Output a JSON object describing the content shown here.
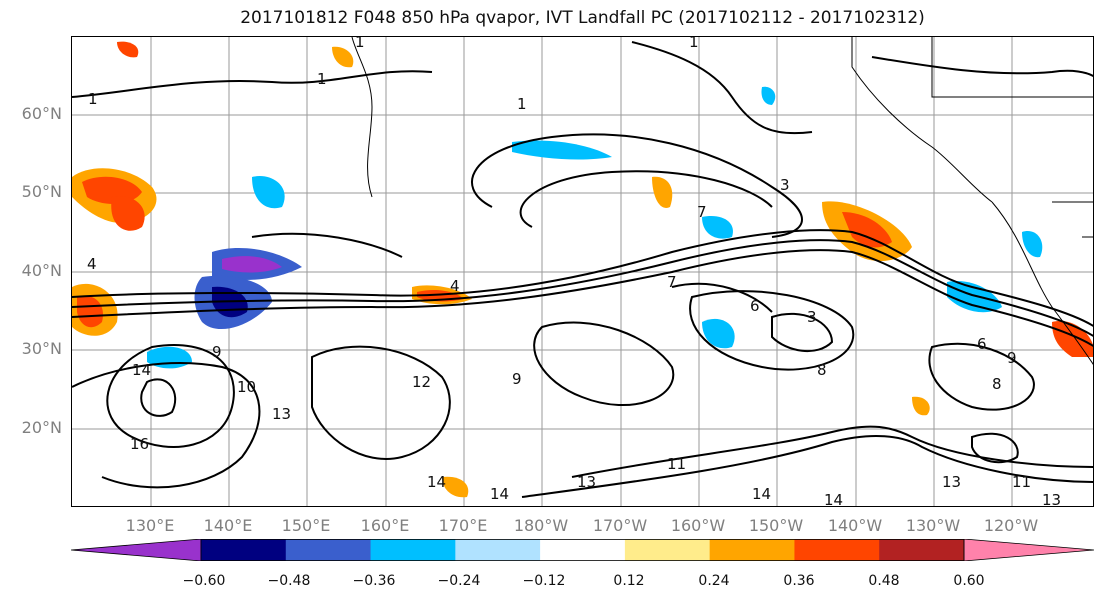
{
  "title": "2017101812 F048 850 hPa qvapor, IVT Landfall PC (2017102112 - 2017102312)",
  "map": {
    "lat_labels": [
      "60°N",
      "50°N",
      "40°N",
      "30°N",
      "20°N"
    ],
    "lon_labels": [
      "130°E",
      "140°E",
      "150°E",
      "160°E",
      "170°E",
      "180°W",
      "170°W",
      "160°W",
      "150°W",
      "140°W",
      "130°W",
      "120°W"
    ],
    "contour_labels": [
      "1",
      "1",
      "1",
      "1",
      "1",
      "3",
      "3",
      "4",
      "4",
      "6",
      "6",
      "7",
      "7",
      "8",
      "8",
      "9",
      "9",
      "9",
      "10",
      "11",
      "12",
      "13",
      "13",
      "13",
      "13",
      "14",
      "14",
      "14",
      "14",
      "14",
      "16",
      "11"
    ]
  },
  "colorbar": {
    "tick_labels": [
      "−0.60",
      "−0.48",
      "−0.36",
      "−0.24",
      "−0.12",
      "0.12",
      "0.24",
      "0.36",
      "0.48",
      "0.60"
    ],
    "colors": [
      "#9932CC",
      "#000080",
      "#3A5FCD",
      "#00BFFF",
      "#B0E2FF",
      "#FFFFFF",
      "#FFEC8B",
      "#FFA500",
      "#FF4500",
      "#B22222",
      "#FF82AB"
    ]
  }
}
